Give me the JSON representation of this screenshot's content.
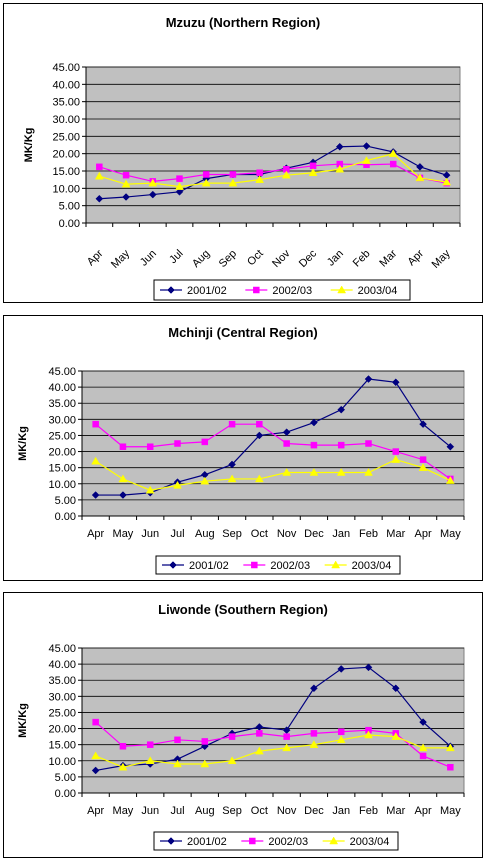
{
  "chart_data": [
    {
      "type": "line",
      "title": "Mzuzu (Northern Region)",
      "ylabel": "MK/Kg",
      "xlabel": "",
      "categories": [
        "Apr",
        "May",
        "Jun",
        "Jul",
        "Aug",
        "Sep",
        "Oct",
        "Nov",
        "Dec",
        "Jan",
        "Feb",
        "Mar",
        "Apr",
        "May"
      ],
      "ylim": [
        0,
        45
      ],
      "yticks": [
        "0.00",
        "5.00",
        "10.00",
        "15.00",
        "20.00",
        "25.00",
        "30.00",
        "35.00",
        "40.00",
        "45.00"
      ],
      "x_tick_rotation": "rotated",
      "grid": true,
      "legend_position": "bottom",
      "series": [
        {
          "name": "2001/02",
          "color": "#000080",
          "marker": "diamond",
          "values": [
            7.0,
            7.5,
            8.2,
            9.0,
            12.8,
            14.0,
            14.0,
            15.8,
            17.5,
            22.0,
            22.2,
            20.5,
            16.2,
            13.8
          ]
        },
        {
          "name": "2002/03",
          "color": "#FF00FF",
          "marker": "square",
          "values": [
            16.2,
            13.8,
            12.0,
            12.8,
            14.0,
            14.0,
            14.5,
            15.5,
            16.5,
            17.0,
            16.8,
            17.0,
            13.0,
            11.5
          ]
        },
        {
          "name": "2003/04",
          "color": "#FFFF00",
          "marker": "triangle",
          "values": [
            13.5,
            11.2,
            11.5,
            10.5,
            11.5,
            11.5,
            12.5,
            13.8,
            14.5,
            15.5,
            18.0,
            20.0,
            13.0,
            11.8
          ]
        }
      ]
    },
    {
      "type": "line",
      "title": "Mchinji (Central Region)",
      "ylabel": "MK/Kg",
      "xlabel": "",
      "categories": [
        "Apr",
        "May",
        "Jun",
        "Jul",
        "Aug",
        "Sep",
        "Oct",
        "Nov",
        "Dec",
        "Jan",
        "Feb",
        "Mar",
        "Apr",
        "May"
      ],
      "ylim": [
        0,
        45
      ],
      "yticks": [
        "0.00",
        "5.00",
        "10.00",
        "15.00",
        "20.00",
        "25.00",
        "30.00",
        "35.00",
        "40.00",
        "45.00"
      ],
      "x_tick_rotation": "horizontal",
      "grid": true,
      "legend_position": "bottom",
      "series": [
        {
          "name": "2001/02",
          "color": "#000080",
          "marker": "diamond",
          "values": [
            6.5,
            6.5,
            7.2,
            10.5,
            12.8,
            16.0,
            25.0,
            26.0,
            29.0,
            33.0,
            42.5,
            41.5,
            28.5,
            21.5
          ]
        },
        {
          "name": "2002/03",
          "color": "#FF00FF",
          "marker": "square",
          "values": [
            28.5,
            21.5,
            21.5,
            22.5,
            23.0,
            28.5,
            28.5,
            22.5,
            22.0,
            22.0,
            22.5,
            20.0,
            17.5,
            11.5
          ]
        },
        {
          "name": "2003/04",
          "color": "#FFFF00",
          "marker": "triangle",
          "values": [
            17.0,
            11.5,
            8.0,
            9.5,
            10.8,
            11.5,
            11.5,
            13.5,
            13.5,
            13.5,
            13.5,
            17.5,
            15.0,
            11.0
          ]
        }
      ]
    },
    {
      "type": "line",
      "title": "Liwonde (Southern Region)",
      "ylabel": "MK/Kg",
      "xlabel": "",
      "categories": [
        "Apr",
        "May",
        "Jun",
        "Jul",
        "Aug",
        "Sep",
        "Oct",
        "Nov",
        "Dec",
        "Jan",
        "Feb",
        "Mar",
        "Apr",
        "May"
      ],
      "ylim": [
        0,
        45
      ],
      "yticks": [
        "0.00",
        "5.00",
        "10.00",
        "15.00",
        "20.00",
        "25.00",
        "30.00",
        "35.00",
        "40.00",
        "45.00"
      ],
      "x_tick_rotation": "horizontal",
      "grid": true,
      "legend_position": "bottom",
      "series": [
        {
          "name": "2001/02",
          "color": "#000080",
          "marker": "diamond",
          "values": [
            7.0,
            8.5,
            9.0,
            10.5,
            14.5,
            18.5,
            20.5,
            19.5,
            32.5,
            38.5,
            39.0,
            32.5,
            22.0,
            14.5
          ]
        },
        {
          "name": "2002/03",
          "color": "#FF00FF",
          "marker": "square",
          "values": [
            22.0,
            14.5,
            15.0,
            16.5,
            16.0,
            17.5,
            18.5,
            17.5,
            18.5,
            19.0,
            19.5,
            18.5,
            11.5,
            8.0
          ]
        },
        {
          "name": "2003/04",
          "color": "#FFFF00",
          "marker": "triangle",
          "values": [
            11.5,
            8.0,
            10.0,
            9.0,
            9.0,
            10.0,
            13.0,
            14.0,
            15.0,
            16.5,
            18.0,
            17.5,
            14.0,
            14.0
          ]
        }
      ]
    }
  ]
}
